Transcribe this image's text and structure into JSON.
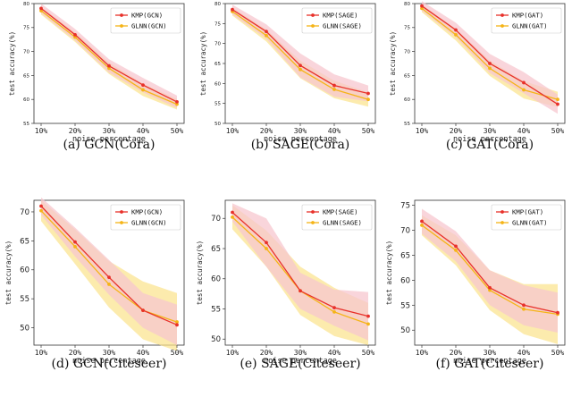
{
  "figure": {
    "x_categories": [
      "10%",
      "20%",
      "30%",
      "40%",
      "50%"
    ],
    "xlabel": "noise percentage",
    "ylabel": "test accuracy(%)",
    "legend_position": "top-right",
    "colors": {
      "kmp": "#e8312a",
      "kmp_band": "#f7c7cf",
      "glnn": "#f5b417",
      "glnn_band": "#fbe28a"
    }
  },
  "chart_data": [
    {
      "type": "line",
      "caption": "(a) GCN(Cora)",
      "ylabel": "test accuracy(%)",
      "xlabel": "noise percentage",
      "categories": [
        "10%",
        "20%",
        "30%",
        "40%",
        "50%"
      ],
      "ylim": [
        55,
        80
      ],
      "yticks": [
        "55",
        "60",
        "65",
        "70",
        "75",
        "80"
      ],
      "series": [
        {
          "name": "KMP(GCN)",
          "values": [
            79.0,
            73.5,
            67.0,
            63.0,
            59.5
          ],
          "band": [
            1.0,
            1.2,
            1.4,
            1.5,
            1.3
          ]
        },
        {
          "name": "GLNN(GCN)",
          "values": [
            78.5,
            73.0,
            66.5,
            62.0,
            59.0
          ],
          "band": [
            0.8,
            1.0,
            1.2,
            1.3,
            1.1
          ]
        }
      ]
    },
    {
      "type": "line",
      "caption": "(b) SAGE(Cora)",
      "ylabel": "test accuracy(%)",
      "xlabel": "noise percentage",
      "categories": [
        "10%",
        "20%",
        "30%",
        "40%",
        "50%"
      ],
      "ylim": [
        50,
        80
      ],
      "yticks": [
        "50",
        "55",
        "60",
        "65",
        "70",
        "75",
        "80"
      ],
      "series": [
        {
          "name": "KMP(SAGE)",
          "values": [
            78.5,
            73.0,
            64.5,
            59.5,
            57.5
          ],
          "band": [
            1.2,
            1.8,
            3.0,
            2.8,
            2.0
          ]
        },
        {
          "name": "GLNN(SAGE)",
          "values": [
            78.0,
            72.0,
            63.5,
            58.5,
            56.0
          ],
          "band": [
            1.0,
            1.5,
            2.2,
            2.2,
            1.8
          ]
        }
      ]
    },
    {
      "type": "line",
      "caption": "(c) GAT(Cora)",
      "ylabel": "test accuracy(%)",
      "xlabel": "noise percentage",
      "categories": [
        "10%",
        "20%",
        "30%",
        "40%",
        "50%"
      ],
      "ylim": [
        55,
        80
      ],
      "yticks": [
        "55",
        "60",
        "65",
        "70",
        "75",
        "80"
      ],
      "series": [
        {
          "name": "KMP(GAT)",
          "values": [
            79.5,
            74.5,
            67.5,
            63.5,
            59.0
          ],
          "band": [
            1.0,
            1.5,
            2.0,
            2.2,
            2.0
          ]
        },
        {
          "name": "GLNN(GAT)",
          "values": [
            79.0,
            73.5,
            66.5,
            62.0,
            60.0
          ],
          "band": [
            0.8,
            1.2,
            1.6,
            1.8,
            1.6
          ]
        }
      ]
    },
    {
      "type": "line",
      "caption": "(d) GCN(Citeseer)",
      "ylabel": "test accuracy(%)",
      "xlabel": "noise percentage",
      "categories": [
        "10%",
        "20%",
        "30%",
        "40%",
        "50%"
      ],
      "ylim": [
        47,
        72
      ],
      "yticks": [
        "50",
        "55",
        "60",
        "65",
        "70"
      ],
      "series": [
        {
          "name": "KMP(GCN)",
          "values": [
            71.0,
            64.8,
            58.7,
            53.0,
            50.5
          ],
          "band": [
            1.5,
            2.5,
            3.0,
            3.0,
            3.5
          ]
        },
        {
          "name": "GLNN(GCN)",
          "values": [
            70.2,
            64.0,
            57.5,
            53.0,
            51.0
          ],
          "band": [
            1.8,
            3.0,
            4.0,
            5.0,
            5.0
          ]
        }
      ]
    },
    {
      "type": "line",
      "caption": "(e) SAGE(Citeseer)",
      "ylabel": "test accuracy(%)",
      "xlabel": "noise percentage",
      "categories": [
        "10%",
        "20%",
        "30%",
        "40%",
        "50%"
      ],
      "ylim": [
        49,
        73
      ],
      "yticks": [
        "50",
        "55",
        "60",
        "65",
        "70"
      ],
      "series": [
        {
          "name": "KMP(SAGE)",
          "values": [
            71.0,
            66.0,
            58.0,
            55.2,
            53.8
          ],
          "band": [
            1.5,
            4.0,
            3.0,
            3.0,
            4.0
          ]
        },
        {
          "name": "GLNN(SAGE)",
          "values": [
            70.2,
            65.0,
            58.0,
            54.5,
            52.5
          ],
          "band": [
            2.0,
            3.0,
            4.0,
            4.0,
            3.5
          ]
        }
      ]
    },
    {
      "type": "line",
      "caption": "(f) GAT(Citeseer)",
      "ylabel": "test accuracy(%)",
      "xlabel": "noise percentage",
      "categories": [
        "10%",
        "20%",
        "30%",
        "40%",
        "50%"
      ],
      "ylim": [
        47,
        76
      ],
      "yticks": [
        "50",
        "55",
        "60",
        "65",
        "70",
        "75"
      ],
      "series": [
        {
          "name": "KMP(GAT)",
          "values": [
            71.8,
            66.8,
            58.5,
            55.0,
            53.5
          ],
          "band": [
            2.5,
            3.0,
            3.5,
            4.0,
            4.0
          ]
        },
        {
          "name": "GLNN(GAT)",
          "values": [
            71.0,
            66.0,
            58.0,
            54.2,
            53.2
          ],
          "band": [
            2.0,
            3.0,
            4.0,
            5.0,
            6.0
          ]
        }
      ]
    }
  ]
}
